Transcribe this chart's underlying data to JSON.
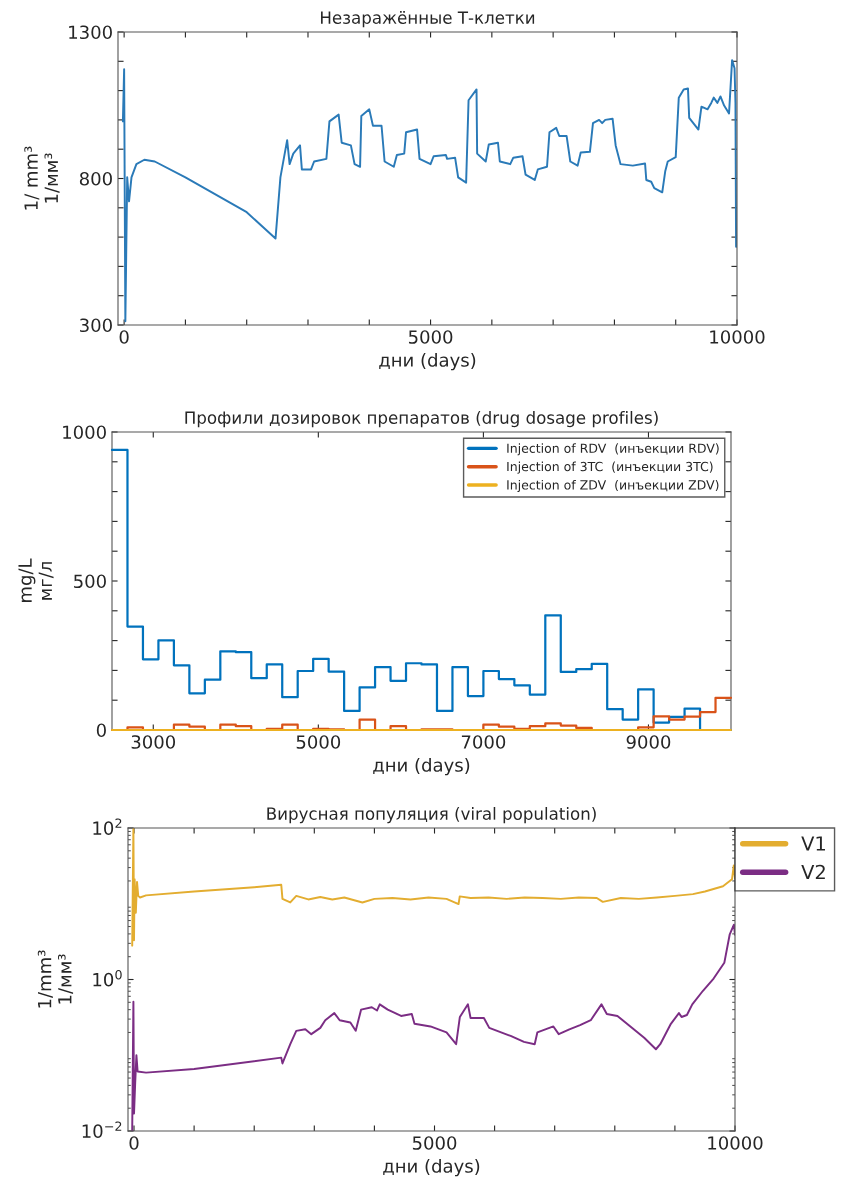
{
  "chart_data": [
    {
      "type": "line",
      "title": "Незаражённые Т-клетки",
      "xlabel": "дни (days)",
      "ylabel": "1/ mm³\n1/мм³",
      "xlim": [
        -100,
        10000
      ],
      "ylim": [
        300,
        1300
      ],
      "xticks": [
        0,
        {
          "value": 1000,
          "label": null
        },
        {
          "value": 2000,
          "label": null
        },
        {
          "value": 3000,
          "label": null
        },
        {
          "value": 4000,
          "label": null
        },
        5000,
        {
          "value": 6000,
          "label": null
        },
        {
          "value": 7000,
          "label": null
        },
        {
          "value": 8000,
          "label": null
        },
        {
          "value": 9000,
          "label": null
        },
        10000
      ],
      "yticks": [
        300,
        {
          "value": 400,
          "label": null
        },
        {
          "value": 500,
          "label": null
        },
        {
          "value": 600,
          "label": null
        },
        {
          "value": 700,
          "label": null
        },
        800,
        {
          "value": 900,
          "label": null
        },
        {
          "value": 1000,
          "label": null
        },
        {
          "value": 1100,
          "label": null
        },
        {
          "value": 1200,
          "label": null
        },
        1300
      ],
      "series": [
        {
          "color": "#2a7ab8",
          "x": [
            -20,
            0,
            20,
            50,
            80,
            120,
            200,
            330,
            500,
            1000,
            2000,
            2470,
            2550,
            2660,
            2700,
            2760,
            2870,
            2900,
            3050,
            3100,
            3300,
            3350,
            3500,
            3550,
            3700,
            3760,
            3850,
            3870,
            4000,
            4060,
            4200,
            4250,
            4400,
            4450,
            4570,
            4600,
            4780,
            4820,
            5000,
            5050,
            5250,
            5270,
            5400,
            5450,
            5580,
            5620,
            5750,
            5760,
            5900,
            5950,
            6100,
            6130,
            6300,
            6350,
            6500,
            6550,
            6700,
            6750,
            6900,
            6940,
            7050,
            7100,
            7220,
            7280,
            7400,
            7450,
            7600,
            7650,
            7750,
            7800,
            7850,
            7970,
            8020,
            8100,
            8300,
            8500,
            8520,
            8600,
            8650,
            8780,
            8830,
            8870,
            9000,
            9050,
            9130,
            9200,
            9220,
            9370,
            9420,
            9520,
            9580,
            9620,
            9680,
            9730,
            9790,
            9870,
            9920,
            9960,
            9975,
            9985
          ],
          "values": [
            995,
            1173,
            313,
            804,
            722,
            804,
            849,
            864,
            858,
            804,
            685,
            595,
            804,
            931,
            849,
            885,
            913,
            831,
            831,
            858,
            867,
            995,
            1018,
            922,
            913,
            849,
            840,
            1013,
            1036,
            980,
            980,
            858,
            840,
            880,
            885,
            958,
            967,
            867,
            849,
            876,
            880,
            867,
            871,
            804,
            786,
            1067,
            1104,
            885,
            858,
            916,
            922,
            858,
            849,
            871,
            876,
            813,
            795,
            831,
            840,
            958,
            973,
            945,
            945,
            858,
            844,
            889,
            891,
            989,
            1000,
            989,
            1000,
            1004,
            913,
            849,
            844,
            851,
            795,
            789,
            767,
            753,
            826,
            858,
            873,
            1076,
            1104,
            1107,
            1007,
            967,
            1045,
            1036,
            1058,
            1076,
            1058,
            1080,
            1049,
            1022,
            1204,
            1176,
            1058,
            567
          ]
        }
      ]
    },
    {
      "type": "step",
      "title": "Профили дозировок препаратов (drug dosage profiles)",
      "xlabel": "дни (days)",
      "ylabel": "mg/L\nмг/л",
      "xlim": [
        2500,
        10000
      ],
      "ylim": [
        0,
        1000
      ],
      "xticks": [
        3000,
        5000,
        7000,
        9000
      ],
      "yticks": [
        0,
        {
          "value": 100,
          "label": null
        },
        {
          "value": 200,
          "label": null
        },
        {
          "value": 300,
          "label": null
        },
        {
          "value": 400,
          "label": null
        },
        500,
        {
          "value": 600,
          "label": null
        },
        {
          "value": 700,
          "label": null
        },
        {
          "value": 800,
          "label": null
        },
        {
          "value": 900,
          "label": null
        },
        1000
      ],
      "legend": "top right",
      "x": [
        2500,
        2687.5,
        2875,
        3062.5,
        3250,
        3437.5,
        3625,
        3812.5,
        4000,
        4187.5,
        4375,
        4562.5,
        4750,
        4937.5,
        5125,
        5312.5,
        5500,
        5687.5,
        5875,
        6062.5,
        6250,
        6437.5,
        6625,
        6812.5,
        7000,
        7187.5,
        7375,
        7562.5,
        7750,
        7937.5,
        8125,
        8312.5,
        8500,
        8687.5,
        8875,
        9062.5,
        9250,
        9437.5,
        9625,
        9812.5,
        10000
      ],
      "series": [
        {
          "name": "Injection of RDV  (инъекции RDV)",
          "color": "#0072bd",
          "values": [
            940,
            347,
            237,
            301,
            217,
            123,
            169,
            264,
            261,
            174,
            220,
            110,
            198,
            239,
            196,
            64,
            143,
            211,
            165,
            224,
            220,
            64,
            211,
            114,
            198,
            171,
            150,
            119,
            385,
            195,
            204,
            222,
            70,
            35,
            136,
            25,
            44,
            72,
            0,
            0,
            0
          ]
        },
        {
          "name": "Injection of 3TC  (инъекции 3TC)",
          "color": "#d95319",
          "values": [
            0,
            9,
            0,
            0,
            18,
            11,
            0,
            18,
            13,
            0,
            4,
            18,
            0,
            4,
            2,
            0,
            35,
            0,
            13,
            0,
            2,
            2,
            0,
            0,
            18,
            11,
            4,
            13,
            22,
            15,
            7,
            0,
            0,
            0,
            9,
            46,
            35,
            45,
            60,
            108,
            108
          ]
        },
        {
          "name": "Injection of ZDV  (инъекции ZDV)",
          "color": "#edb120",
          "values": [
            0,
            0,
            0,
            0,
            0,
            0,
            0,
            0,
            0,
            0,
            0,
            0,
            0,
            0,
            0,
            0,
            0,
            0,
            0,
            0,
            0,
            0,
            0,
            0,
            0,
            0,
            0,
            0,
            0,
            0,
            0,
            0,
            0,
            0,
            0,
            0,
            0,
            0,
            0,
            0,
            0
          ]
        }
      ]
    },
    {
      "type": "line",
      "title": "Вирусная популяция (viral population)",
      "xlabel": "дни (days)",
      "ylabel": "1/mm³\n1/мм³",
      "log": "y",
      "xlim": [
        -100,
        10000
      ],
      "ylim": [
        0.01,
        100
      ],
      "xticks": [
        0,
        {
          "value": 1000,
          "label": null
        },
        {
          "value": 2000,
          "label": null
        },
        {
          "value": 3000,
          "label": null
        },
        {
          "value": 4000,
          "label": null
        },
        5000,
        {
          "value": 6000,
          "label": null
        },
        {
          "value": 7000,
          "label": null
        },
        {
          "value": 8000,
          "label": null
        },
        {
          "value": 9000,
          "label": null
        },
        10000
      ],
      "yticks": [
        {
          "value": 0.01,
          "label": "10$^{−2}$"
        },
        {
          "value": 1,
          "label": "10$^{0}$"
        },
        {
          "value": 100,
          "label": "10$^{2}$"
        }
      ],
      "legend": "right",
      "series": [
        {
          "name": "V1",
          "color": "#e3ad30",
          "x": [
            -30,
            -10,
            0,
            10,
            30,
            50,
            70,
            100,
            200,
            1000,
            2000,
            2450,
            2470,
            2600,
            2700,
            2900,
            3100,
            3300,
            3500,
            3800,
            4000,
            4300,
            4600,
            4900,
            5200,
            5400,
            5420,
            5600,
            5900,
            6200,
            6500,
            6800,
            7100,
            7400,
            7700,
            7800,
            8100,
            8400,
            8700,
            9000,
            9300,
            9500,
            9800,
            9950,
            9980,
            10000
          ],
          "values": [
            2.8,
            100,
            3.3,
            21,
            7.6,
            19.4,
            12.7,
            12.1,
            12.9,
            14.5,
            16.5,
            17.8,
            11.6,
            10.4,
            12.7,
            11.4,
            12.3,
            11.4,
            12.1,
            10.4,
            11.6,
            11.9,
            11.4,
            12.1,
            11.6,
            9.9,
            12.5,
            11.9,
            12.1,
            11.6,
            12.1,
            11.9,
            11.6,
            12.1,
            11.9,
            10.6,
            11.9,
            11.6,
            12.1,
            12.7,
            13.4,
            14.5,
            17,
            21,
            32,
            21.8
          ]
        },
        {
          "name": "V2",
          "color": "#7b2d84",
          "x": [
            -30,
            -10,
            0,
            20,
            40,
            60,
            200,
            1000,
            2450,
            2470,
            2600,
            2700,
            2850,
            2950,
            3100,
            3182,
            3333,
            3422,
            3600,
            3689,
            3778,
            3956,
            4044,
            4089,
            4222,
            4444,
            4622,
            4667,
            4933,
            5200,
            5360,
            5422,
            5556,
            5600,
            5822,
            5911,
            6267,
            6489,
            6667,
            6711,
            6978,
            7067,
            7244,
            7422,
            7600,
            7778,
            7867,
            8044,
            8489,
            8684,
            8756,
            8933,
            9067,
            9111,
            9200,
            9289,
            9467,
            9644,
            9822,
            9911,
            9982,
            10000
          ],
          "values": [
            0.01,
            0.51,
            0.017,
            0.044,
            0.1,
            0.061,
            0.059,
            0.066,
            0.093,
            0.078,
            0.14,
            0.21,
            0.22,
            0.19,
            0.23,
            0.29,
            0.36,
            0.29,
            0.27,
            0.21,
            0.4,
            0.43,
            0.39,
            0.47,
            0.4,
            0.33,
            0.35,
            0.26,
            0.24,
            0.2,
            0.14,
            0.32,
            0.47,
            0.31,
            0.31,
            0.23,
            0.18,
            0.15,
            0.14,
            0.2,
            0.24,
            0.19,
            0.22,
            0.25,
            0.29,
            0.47,
            0.35,
            0.33,
            0.17,
            0.12,
            0.14,
            0.26,
            0.36,
            0.32,
            0.34,
            0.47,
            0.71,
            1.03,
            1.66,
            3.9,
            5.3,
            3.9
          ]
        }
      ]
    }
  ]
}
